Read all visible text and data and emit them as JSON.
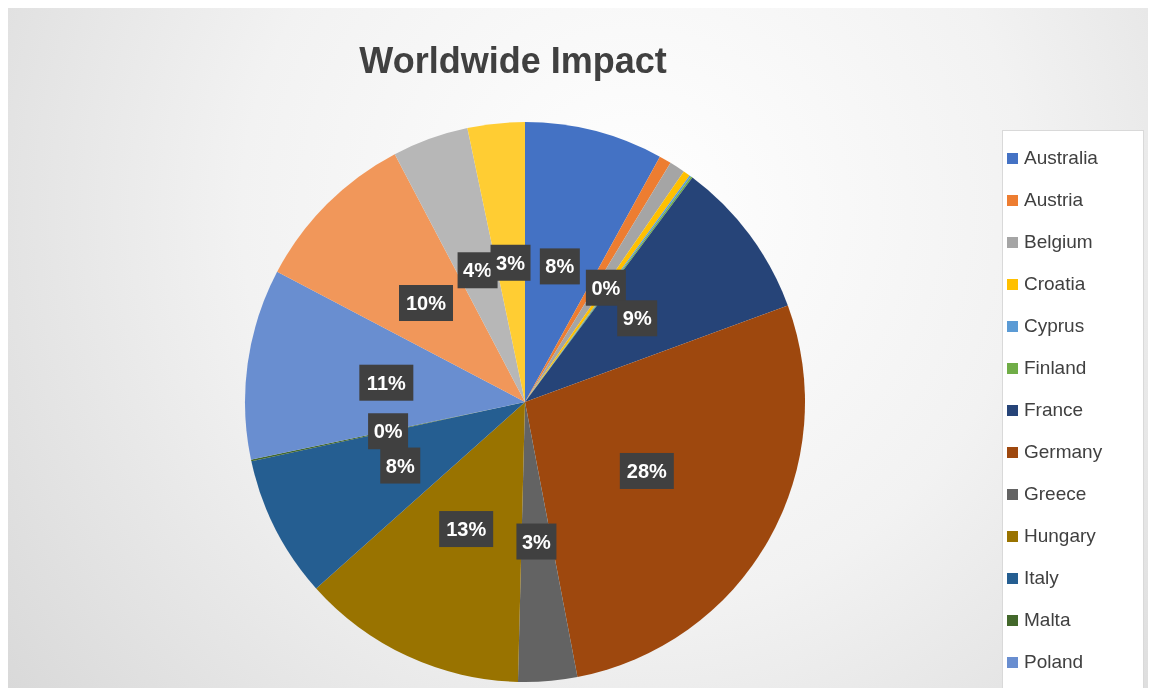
{
  "chart_data": {
    "type": "pie",
    "title": "Worldwide Impact",
    "categories": [
      "Australia",
      "Austria",
      "Belgium",
      "Croatia",
      "Cyprus",
      "Finland",
      "France",
      "Germany",
      "Greece",
      "Hungary",
      "Italy",
      "Malta",
      "Poland",
      null,
      null,
      null
    ],
    "values": [
      8.0,
      0.7,
      0.9,
      0.4,
      0.1,
      0.1,
      9.2,
      27.6,
      3.4,
      13.0,
      8.2,
      0.1,
      11.0,
      9.6,
      4.4,
      3.3
    ],
    "colors": [
      "#4472c4",
      "#ed7d31",
      "#a5a5a5",
      "#ffc000",
      "#5b9bd5",
      "#70ad47",
      "#264478",
      "#9e480e",
      "#636363",
      "#997300",
      "#255e91",
      "#43682b",
      "#698ed0",
      "#f1975a",
      "#b7b7b7",
      "#ffcd33"
    ],
    "value_labels": [
      "8%",
      null,
      null,
      "0%",
      null,
      null,
      "9%",
      "28%",
      "3%",
      "13%",
      "8%",
      "0%",
      "11%",
      "10%",
      "4%",
      "3%"
    ],
    "legend": "right"
  }
}
